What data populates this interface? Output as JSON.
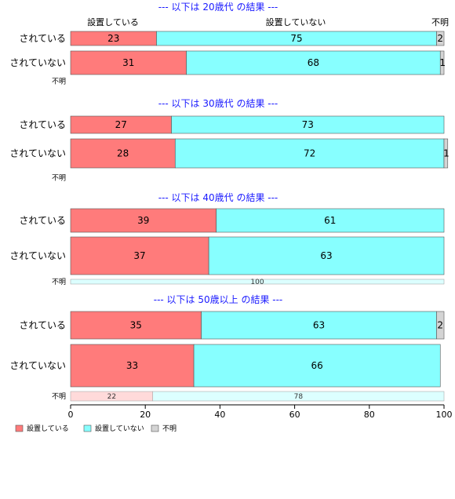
{
  "chart_data": {
    "type": "bar",
    "orientation": "horizontal",
    "stacked": true,
    "series": [
      {
        "name": "設置している",
        "color": "#ff7b7b",
        "faded_color": "#ffdada"
      },
      {
        "name": "設置していない",
        "color": "#87ffff",
        "faded_color": "#dcffff"
      },
      {
        "name": "不明",
        "color": "#d4d4d4",
        "faded_color": "#eeeeee"
      }
    ],
    "column_headers": [
      "設置している",
      "設置していない",
      "不明"
    ],
    "panels": [
      {
        "title": "--- 以下は 20歳代 の結果 ---",
        "rows": [
          {
            "label": "されている",
            "values": [
              23,
              75,
              2
            ],
            "labels": [
              "23",
              "75",
              "2"
            ],
            "minor": false
          },
          {
            "label": "されていない",
            "values": [
              31,
              68,
              1
            ],
            "labels": [
              "31",
              "68",
              "1"
            ],
            "minor": false
          },
          {
            "label": "不明",
            "values": [],
            "labels": [],
            "minor": true
          }
        ]
      },
      {
        "title": "--- 以下は 30歳代 の結果 ---",
        "rows": [
          {
            "label": "されている",
            "values": [
              27,
              73,
              0
            ],
            "labels": [
              "27",
              "73",
              ""
            ],
            "minor": false
          },
          {
            "label": "されていない",
            "values": [
              28,
              72,
              1
            ],
            "labels": [
              "28",
              "72",
              "1"
            ],
            "minor": false
          },
          {
            "label": "不明",
            "values": [],
            "labels": [],
            "minor": true
          }
        ]
      },
      {
        "title": "--- 以下は 40歳代 の結果 ---",
        "rows": [
          {
            "label": "されている",
            "values": [
              39,
              61,
              0
            ],
            "labels": [
              "39",
              "61",
              ""
            ],
            "minor": false
          },
          {
            "label": "されていない",
            "values": [
              37,
              63,
              0
            ],
            "labels": [
              "37",
              "63",
              ""
            ],
            "minor": false
          },
          {
            "label": "不明",
            "values": [
              0,
              100,
              0
            ],
            "labels": [
              "",
              "100",
              ""
            ],
            "minor": true
          }
        ]
      },
      {
        "title": "--- 以下は 50歳以上 の結果 ---",
        "rows": [
          {
            "label": "されている",
            "values": [
              35,
              63,
              2
            ],
            "labels": [
              "35",
              "63",
              "2"
            ],
            "minor": false
          },
          {
            "label": "されていない",
            "values": [
              33,
              66,
              0
            ],
            "labels": [
              "33",
              "66",
              ""
            ],
            "minor": false
          },
          {
            "label": "不明",
            "values": [
              22,
              78,
              0
            ],
            "labels": [
              "22",
              "78",
              ""
            ],
            "minor": true
          }
        ]
      }
    ],
    "xlim": [
      0,
      100
    ],
    "xticks": [
      0,
      20,
      40,
      60,
      80,
      100
    ],
    "legend": {
      "placement": "bottom-left",
      "entries": [
        "設置している",
        "設置していない",
        "不明"
      ]
    },
    "grid": false
  }
}
